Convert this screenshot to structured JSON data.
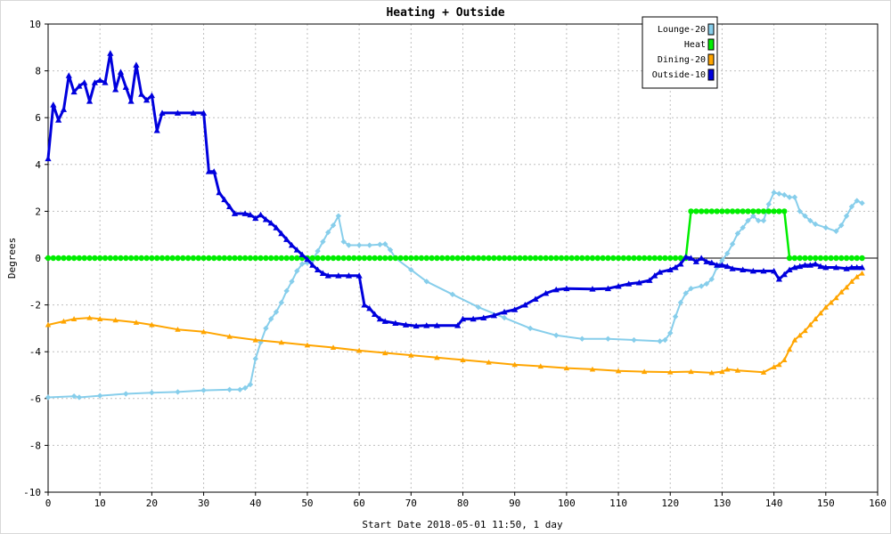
{
  "chart_data": {
    "type": "line",
    "title": "Heating + Outside",
    "xlabel": "Start Date 2018-05-01 11:50, 1 day",
    "ylabel": "Degrees",
    "xlim": [
      0,
      160
    ],
    "ylim": [
      -10,
      10
    ],
    "x_ticks": [
      0,
      10,
      20,
      30,
      40,
      50,
      60,
      70,
      80,
      90,
      100,
      110,
      120,
      130,
      140,
      150,
      160
    ],
    "y_ticks": [
      -10,
      -8,
      -6,
      -4,
      -2,
      0,
      2,
      4,
      6,
      8,
      10
    ],
    "grid": true,
    "legend_position": "top-right",
    "series": [
      {
        "name": "Lounge-20",
        "color": "#87ceeb",
        "marker": "diamond",
        "points": [
          [
            0,
            -5.95
          ],
          [
            5,
            -5.9
          ],
          [
            6,
            -5.95
          ],
          [
            10,
            -5.88
          ],
          [
            15,
            -5.8
          ],
          [
            20,
            -5.75
          ],
          [
            25,
            -5.72
          ],
          [
            30,
            -5.65
          ],
          [
            35,
            -5.62
          ],
          [
            37,
            -5.62
          ],
          [
            38,
            -5.55
          ],
          [
            39,
            -5.4
          ],
          [
            40,
            -4.3
          ],
          [
            41,
            -3.6
          ],
          [
            42,
            -3.0
          ],
          [
            43,
            -2.6
          ],
          [
            44,
            -2.3
          ],
          [
            45,
            -1.9
          ],
          [
            46,
            -1.4
          ],
          [
            47,
            -1.0
          ],
          [
            48,
            -0.55
          ],
          [
            49,
            -0.25
          ],
          [
            50,
            -0.2
          ],
          [
            51,
            -0.1
          ],
          [
            52,
            0.3
          ],
          [
            53,
            0.7
          ],
          [
            54,
            1.1
          ],
          [
            55,
            1.4
          ],
          [
            56,
            1.8
          ],
          [
            57,
            0.7
          ],
          [
            58,
            0.55
          ],
          [
            60,
            0.55
          ],
          [
            62,
            0.55
          ],
          [
            64,
            0.58
          ],
          [
            65,
            0.6
          ],
          [
            66,
            0.35
          ],
          [
            67,
            0.0
          ],
          [
            70,
            -0.5
          ],
          [
            73,
            -1.0
          ],
          [
            78,
            -1.55
          ],
          [
            83,
            -2.1
          ],
          [
            88,
            -2.55
          ],
          [
            93,
            -3.0
          ],
          [
            98,
            -3.3
          ],
          [
            103,
            -3.45
          ],
          [
            108,
            -3.45
          ],
          [
            113,
            -3.5
          ],
          [
            118,
            -3.55
          ],
          [
            119,
            -3.5
          ],
          [
            120,
            -3.2
          ],
          [
            121,
            -2.5
          ],
          [
            122,
            -1.9
          ],
          [
            123,
            -1.5
          ],
          [
            124,
            -1.3
          ],
          [
            126,
            -1.2
          ],
          [
            127,
            -1.1
          ],
          [
            128,
            -0.9
          ],
          [
            129,
            -0.4
          ],
          [
            130,
            -0.1
          ],
          [
            131,
            0.2
          ],
          [
            132,
            0.6
          ],
          [
            133,
            1.05
          ],
          [
            134,
            1.3
          ],
          [
            135,
            1.6
          ],
          [
            136,
            1.8
          ],
          [
            137,
            1.6
          ],
          [
            138,
            1.6
          ],
          [
            139,
            2.3
          ],
          [
            140,
            2.8
          ],
          [
            141,
            2.75
          ],
          [
            142,
            2.7
          ],
          [
            143,
            2.6
          ],
          [
            144,
            2.6
          ],
          [
            145,
            2.0
          ],
          [
            146,
            1.8
          ],
          [
            147,
            1.6
          ],
          [
            148,
            1.45
          ],
          [
            150,
            1.3
          ],
          [
            152,
            1.15
          ],
          [
            153,
            1.4
          ],
          [
            154,
            1.8
          ],
          [
            155,
            2.2
          ],
          [
            156,
            2.45
          ],
          [
            157,
            2.35
          ]
        ]
      },
      {
        "name": "Heat",
        "color": "#00ee00",
        "marker": "circle",
        "points": [
          [
            0,
            0
          ],
          [
            123,
            0
          ],
          [
            124,
            2
          ],
          [
            141,
            2
          ],
          [
            142,
            2
          ],
          [
            143,
            0
          ],
          [
            157,
            0
          ]
        ],
        "marker_step": 1
      },
      {
        "name": "Dining-20",
        "color": "#ffa500",
        "marker": "triangle",
        "points": [
          [
            0,
            -2.85
          ],
          [
            3,
            -2.7
          ],
          [
            5,
            -2.6
          ],
          [
            8,
            -2.55
          ],
          [
            10,
            -2.6
          ],
          [
            13,
            -2.65
          ],
          [
            17,
            -2.75
          ],
          [
            20,
            -2.85
          ],
          [
            25,
            -3.05
          ],
          [
            30,
            -3.15
          ],
          [
            35,
            -3.35
          ],
          [
            40,
            -3.5
          ],
          [
            45,
            -3.6
          ],
          [
            50,
            -3.72
          ],
          [
            55,
            -3.82
          ],
          [
            60,
            -3.95
          ],
          [
            65,
            -4.05
          ],
          [
            70,
            -4.15
          ],
          [
            75,
            -4.25
          ],
          [
            80,
            -4.35
          ],
          [
            85,
            -4.45
          ],
          [
            90,
            -4.55
          ],
          [
            95,
            -4.62
          ],
          [
            100,
            -4.7
          ],
          [
            105,
            -4.75
          ],
          [
            110,
            -4.82
          ],
          [
            115,
            -4.85
          ],
          [
            120,
            -4.87
          ],
          [
            124,
            -4.85
          ],
          [
            128,
            -4.9
          ],
          [
            130,
            -4.85
          ],
          [
            131,
            -4.75
          ],
          [
            133,
            -4.8
          ],
          [
            138,
            -4.88
          ],
          [
            140,
            -4.65
          ],
          [
            141,
            -4.55
          ],
          [
            142,
            -4.35
          ],
          [
            143,
            -3.9
          ],
          [
            144,
            -3.5
          ],
          [
            145,
            -3.3
          ],
          [
            146,
            -3.1
          ],
          [
            147,
            -2.85
          ],
          [
            148,
            -2.6
          ],
          [
            149,
            -2.35
          ],
          [
            150,
            -2.1
          ],
          [
            151,
            -1.9
          ],
          [
            152,
            -1.7
          ],
          [
            153,
            -1.45
          ],
          [
            154,
            -1.25
          ],
          [
            155,
            -1.0
          ],
          [
            156,
            -0.8
          ],
          [
            157,
            -0.65
          ]
        ]
      },
      {
        "name": "Outside-10",
        "color": "#0000dd",
        "marker": "triangle",
        "points": [
          [
            0,
            4.25
          ],
          [
            1,
            6.55
          ],
          [
            2,
            5.9
          ],
          [
            3,
            6.35
          ],
          [
            4,
            7.8
          ],
          [
            5,
            7.1
          ],
          [
            6,
            7.35
          ],
          [
            7,
            7.5
          ],
          [
            8,
            6.7
          ],
          [
            9,
            7.5
          ],
          [
            10,
            7.6
          ],
          [
            11,
            7.5
          ],
          [
            12,
            8.75
          ],
          [
            13,
            7.2
          ],
          [
            14,
            7.95
          ],
          [
            15,
            7.3
          ],
          [
            16,
            6.7
          ],
          [
            17,
            8.25
          ],
          [
            18,
            7.0
          ],
          [
            19,
            6.75
          ],
          [
            20,
            6.95
          ],
          [
            21,
            5.45
          ],
          [
            22,
            6.2
          ],
          [
            25,
            6.2
          ],
          [
            28,
            6.2
          ],
          [
            30,
            6.2
          ],
          [
            31,
            3.7
          ],
          [
            32,
            3.7
          ],
          [
            33,
            2.8
          ],
          [
            34,
            2.5
          ],
          [
            35,
            2.2
          ],
          [
            36,
            1.9
          ],
          [
            38,
            1.9
          ],
          [
            39,
            1.85
          ],
          [
            40,
            1.7
          ],
          [
            41,
            1.85
          ],
          [
            42,
            1.65
          ],
          [
            43,
            1.5
          ],
          [
            44,
            1.3
          ],
          [
            45,
            1.05
          ],
          [
            46,
            0.8
          ],
          [
            47,
            0.55
          ],
          [
            48,
            0.35
          ],
          [
            49,
            0.15
          ],
          [
            50,
            -0.05
          ],
          [
            51,
            -0.3
          ],
          [
            52,
            -0.5
          ],
          [
            53,
            -0.65
          ],
          [
            54,
            -0.75
          ],
          [
            56,
            -0.75
          ],
          [
            58,
            -0.75
          ],
          [
            60,
            -0.75
          ],
          [
            61,
            -2.0
          ],
          [
            62,
            -2.15
          ],
          [
            63,
            -2.4
          ],
          [
            64,
            -2.6
          ],
          [
            65,
            -2.7
          ],
          [
            67,
            -2.78
          ],
          [
            69,
            -2.85
          ],
          [
            71,
            -2.9
          ],
          [
            73,
            -2.88
          ],
          [
            75,
            -2.88
          ],
          [
            79,
            -2.88
          ],
          [
            80,
            -2.6
          ],
          [
            82,
            -2.6
          ],
          [
            84,
            -2.55
          ],
          [
            86,
            -2.45
          ],
          [
            88,
            -2.3
          ],
          [
            90,
            -2.2
          ],
          [
            92,
            -2.0
          ],
          [
            94,
            -1.75
          ],
          [
            96,
            -1.5
          ],
          [
            98,
            -1.35
          ],
          [
            100,
            -1.3
          ],
          [
            105,
            -1.32
          ],
          [
            108,
            -1.3
          ],
          [
            110,
            -1.2
          ],
          [
            112,
            -1.1
          ],
          [
            114,
            -1.05
          ],
          [
            116,
            -0.95
          ],
          [
            117,
            -0.75
          ],
          [
            118,
            -0.6
          ],
          [
            120,
            -0.5
          ],
          [
            121,
            -0.4
          ],
          [
            122,
            -0.25
          ],
          [
            123,
            0.05
          ],
          [
            124,
            0.0
          ],
          [
            125,
            -0.15
          ],
          [
            126,
            0.0
          ],
          [
            127,
            -0.15
          ],
          [
            128,
            -0.2
          ],
          [
            129,
            -0.3
          ],
          [
            130,
            -0.3
          ],
          [
            131,
            -0.35
          ],
          [
            132,
            -0.45
          ],
          [
            134,
            -0.5
          ],
          [
            136,
            -0.55
          ],
          [
            138,
            -0.55
          ],
          [
            140,
            -0.55
          ],
          [
            141,
            -0.9
          ],
          [
            142,
            -0.7
          ],
          [
            143,
            -0.5
          ],
          [
            144,
            -0.4
          ],
          [
            145,
            -0.35
          ],
          [
            146,
            -0.3
          ],
          [
            147,
            -0.3
          ],
          [
            148,
            -0.25
          ],
          [
            149,
            -0.35
          ],
          [
            150,
            -0.4
          ],
          [
            152,
            -0.4
          ],
          [
            154,
            -0.45
          ],
          [
            155,
            -0.4
          ],
          [
            156,
            -0.4
          ],
          [
            157,
            -0.4
          ]
        ]
      }
    ]
  }
}
